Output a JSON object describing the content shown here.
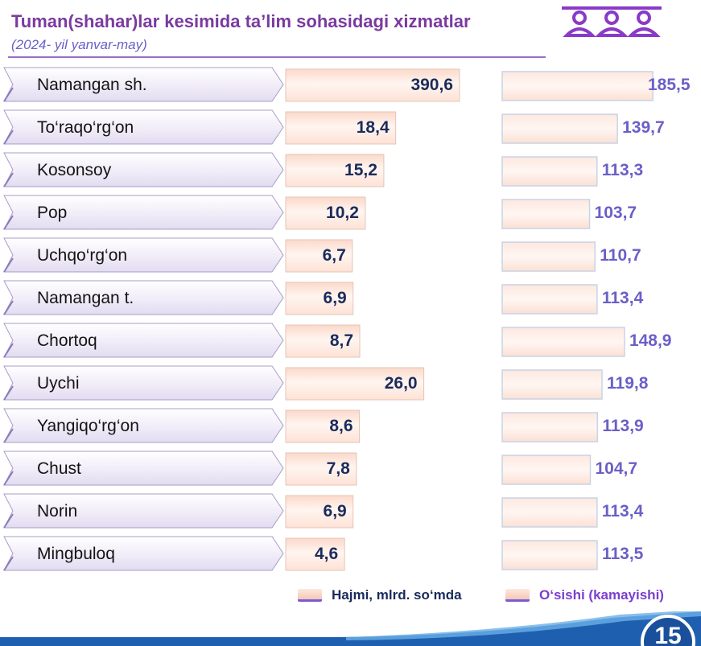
{
  "header": {
    "title": "Tuman(shahar)lar kesimida ta’lim sohasidagi xizmatlar",
    "subtitle": "(2024- yil yanvar-may)"
  },
  "legend": {
    "volume": "Hajmi, mlrd. so‘mda",
    "growth": "O‘sishi (kamayishi)"
  },
  "page_number": "15",
  "icons": {
    "people": "people-group-icon"
  },
  "colors": {
    "label_bar": "#ece8f6",
    "value_bar": "#f8d3c2",
    "volume_text": "#1a2b5c",
    "growth_text": "#6a5fc8",
    "accent": "#7a3aa0",
    "footer": "#1f5fb0"
  },
  "chart_data": {
    "type": "bar",
    "categories": [
      "Namangan sh.",
      "To‘raqo‘rg‘on",
      "Kosonsoy",
      "Pop",
      "Uchqo‘rg‘on",
      "Namangan t.",
      "Chortoq",
      "Uychi",
      "Yangiqo‘rg‘on",
      "Chust",
      "Norin",
      "Mingbuloq"
    ],
    "series": [
      {
        "name": "Hajmi, mlrd. so‘mda",
        "values": [
          390.6,
          18.4,
          15.2,
          10.2,
          6.7,
          6.9,
          8.7,
          26.0,
          8.6,
          7.8,
          6.9,
          4.6
        ],
        "labels": [
          "390,6",
          "18,4",
          "15,2",
          "10,2",
          "6,7",
          "6,9",
          "8,7",
          "26,0",
          "8,6",
          "7,8",
          "6,9",
          "4,6"
        ]
      },
      {
        "name": "O‘sishi (kamayishi)",
        "values": [
          185.5,
          139.7,
          113.3,
          103.7,
          110.7,
          113.4,
          148.9,
          119.8,
          113.9,
          104.7,
          113.4,
          113.5
        ],
        "labels": [
          "185,5",
          "139,7",
          "113,3",
          "103,7",
          "110,7",
          "113,4",
          "148,9",
          "119,8",
          "113,9",
          "104,7",
          "113,4",
          "113,5"
        ]
      }
    ]
  }
}
